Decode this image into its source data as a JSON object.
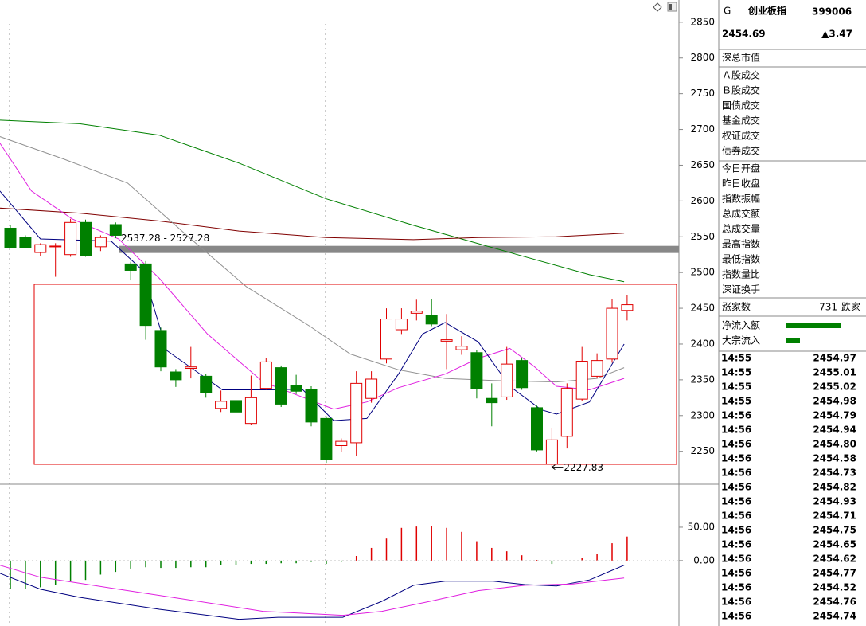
{
  "chart_data": [
    {
      "type": "candlestick",
      "open": [
        2562,
        2549,
        2528,
        2537,
        2525,
        2570,
        2536,
        2567,
        2512,
        2512,
        2419,
        2361,
        2366,
        2355,
        2310,
        2321,
        2289,
        2338,
        2367,
        2342,
        2337,
        2296,
        2258,
        2262,
        2324,
        2379,
        2420,
        2443,
        2440,
        2404,
        2392,
        2388,
        2324,
        2326,
        2377,
        2311,
        2232,
        2271,
        2323,
        2355,
        2379,
        2447
      ],
      "high": [
        2566,
        2552,
        2541,
        2541,
        2575,
        2574,
        2552,
        2570,
        2515,
        2516,
        2423,
        2365,
        2396,
        2358,
        2335,
        2325,
        2356,
        2380,
        2370,
        2357,
        2341,
        2299,
        2268,
        2362,
        2362,
        2450,
        2450,
        2462,
        2463,
        2442,
        2411,
        2392,
        2345,
        2396,
        2380,
        2314,
        2282,
        2345,
        2396,
        2387,
        2463,
        2469
      ],
      "low": [
        2535,
        2535,
        2523,
        2494,
        2522,
        2522,
        2530,
        2548,
        2489,
        2406,
        2362,
        2340,
        2352,
        2325,
        2305,
        2289,
        2287,
        2336,
        2312,
        2330,
        2285,
        2234,
        2249,
        2243,
        2318,
        2373,
        2414,
        2433,
        2425,
        2365,
        2385,
        2324,
        2285,
        2322,
        2336,
        2250,
        2227.83,
        2254,
        2320,
        2353,
        2374,
        2433
      ],
      "close": [
        2535,
        2535,
        2539,
        2537,
        2570,
        2524,
        2549,
        2552,
        2503,
        2426,
        2368,
        2350,
        2368,
        2332,
        2320,
        2305,
        2325,
        2375,
        2316,
        2334,
        2291,
        2239,
        2264,
        2345,
        2351,
        2435,
        2435,
        2446,
        2428,
        2406,
        2397,
        2338,
        2318,
        2372,
        2339,
        2252,
        2266,
        2338,
        2376,
        2377,
        2450,
        2455
      ],
      "up_color": "#e00000",
      "down_color": "#008000",
      "ylim": [
        2204,
        2881
      ],
      "yticks": [
        2250,
        2300,
        2350,
        2400,
        2450,
        2500,
        2550,
        2600,
        2650,
        2700,
        2750,
        2800,
        2850
      ],
      "lines": [
        {
          "color": "#008000",
          "x": [
            -0.7,
            4.6,
            9.9,
            15.2,
            21.0,
            26.8,
            30.0,
            33.7,
            38.5,
            40.8
          ],
          "values": [
            2713,
            2708,
            2692,
            2653,
            2603,
            2566,
            2547,
            2525,
            2497,
            2487
          ]
        },
        {
          "color": "#800000",
          "x": [
            -0.7,
            4.6,
            9.9,
            15.2,
            21.0,
            26.8,
            31.1,
            36.3,
            40.8
          ],
          "values": [
            2590,
            2583,
            2572,
            2558,
            2549,
            2546,
            2549,
            2550,
            2555
          ]
        },
        {
          "color": "#909090",
          "x": [
            -0.7,
            3.5,
            7.8,
            12.0,
            15.7,
            19.9,
            22.6,
            25.8,
            28.9,
            32.1,
            36.3,
            39.0,
            40.8
          ],
          "values": [
            2690,
            2659,
            2625,
            2547,
            2480,
            2425,
            2386,
            2364,
            2352,
            2349,
            2347,
            2352,
            2367
          ]
        },
        {
          "color": "#e020e0",
          "x": [
            -0.7,
            1.4,
            4.1,
            7.2,
            9.9,
            13.1,
            16.8,
            21.5,
            23.7,
            25.8,
            28.9,
            31.1,
            33.2,
            34.8,
            36.3,
            38.5,
            40.8
          ],
          "values": [
            2681,
            2614,
            2575,
            2547,
            2492,
            2414,
            2347,
            2309,
            2319,
            2339,
            2358,
            2380,
            2394,
            2369,
            2341,
            2336,
            2352
          ]
        },
        {
          "color": "#000080",
          "x": [
            -0.7,
            2.0,
            6.7,
            8.8,
            10.4,
            14.1,
            17.3,
            19.4,
            21.5,
            23.7,
            25.8,
            27.4,
            28.9,
            31.1,
            33.2,
            35.3,
            36.3,
            38.5,
            40.8
          ],
          "values": [
            2614,
            2547,
            2544,
            2503,
            2391,
            2336,
            2336,
            2337,
            2293,
            2296,
            2358,
            2414,
            2430,
            2403,
            2341,
            2308,
            2302,
            2319,
            2400
          ]
        }
      ],
      "band": {
        "from": 2537.28,
        "to": 2527.28,
        "label": "2537.28 - 2527.28"
      },
      "annotation": {
        "value": 2227.83
      }
    },
    {
      "type": "macd",
      "values": [
        -43,
        -43,
        -40,
        -37,
        -31,
        -29,
        -21,
        -17,
        -12,
        -10,
        -11,
        -11,
        -10,
        -10,
        -7,
        -7,
        -5,
        -5,
        -4,
        -4,
        -2,
        -5,
        -2,
        7,
        19,
        33,
        49,
        51,
        52,
        49,
        43,
        29,
        19,
        14,
        8,
        1,
        -5,
        0,
        4,
        10,
        26,
        36
      ],
      "up_color": "#e00000",
      "down_color": "#008000",
      "ylim": [
        -98,
        112
      ],
      "yticks": [
        {
          "value": 0,
          "label": "0.00"
        },
        {
          "value": 50,
          "label": "50.00"
        }
      ],
      "lines": [
        {
          "color": "#000080",
          "x": [
            -0.7,
            2.0,
            4.6,
            9.9,
            15.2,
            17.8,
            22.1,
            24.7,
            26.8,
            28.9,
            32.1,
            34.2,
            36.3,
            38.5,
            40.8
          ],
          "values": [
            -19,
            -43,
            -55,
            -73,
            -88,
            -85,
            -85,
            -61,
            -37,
            -31,
            -31,
            -36,
            -38,
            -29,
            -7
          ]
        },
        {
          "color": "#e020e0",
          "x": [
            -0.7,
            2.0,
            7.2,
            12.5,
            16.8,
            22.1,
            24.7,
            27.9,
            31.1,
            34.2,
            37.4,
            40.8
          ],
          "values": [
            -7,
            -25,
            -43,
            -61,
            -76,
            -82,
            -76,
            -61,
            -45,
            -37,
            -35,
            -26
          ]
        }
      ]
    }
  ],
  "quote_panel": {
    "code_flag": "G",
    "name": "创业板指",
    "code": "399006",
    "price": 2454.69,
    "change": "▲3.47",
    "market_rows": [
      "深总市值"
    ],
    "volume_rows": [
      "Ａ股成交",
      "Ｂ股成交",
      "国债成交",
      "基金成交",
      "权证成交",
      "债券成交"
    ],
    "index_rows": [
      "今日开盘",
      "昨日收盘",
      "指数振幅",
      "总成交额",
      "总成交量",
      "最高指数",
      "最低指数",
      "指数量比",
      "深证换手"
    ],
    "advance_label": "涨家数",
    "advance_count": 731,
    "decline_label": "跌家",
    "flow_rows": [
      "净流入额",
      "大宗流入"
    ],
    "ticks": [
      {
        "time": "14:55",
        "price": "2454.97"
      },
      {
        "time": "14:55",
        "price": "2455.01"
      },
      {
        "time": "14:55",
        "price": "2455.02"
      },
      {
        "time": "14:55",
        "price": "2454.98"
      },
      {
        "time": "14:56",
        "price": "2454.79"
      },
      {
        "time": "14:56",
        "price": "2454.94"
      },
      {
        "time": "14:56",
        "price": "2454.80"
      },
      {
        "time": "14:56",
        "price": "2454.58"
      },
      {
        "time": "14:56",
        "price": "2454.73"
      },
      {
        "time": "14:56",
        "price": "2454.82"
      },
      {
        "time": "14:56",
        "price": "2454.93"
      },
      {
        "time": "14:56",
        "price": "2454.71"
      },
      {
        "time": "14:56",
        "price": "2454.75"
      },
      {
        "time": "14:56",
        "price": "2454.65"
      },
      {
        "time": "14:56",
        "price": "2454.62"
      },
      {
        "time": "14:56",
        "price": "2454.77"
      },
      {
        "time": "14:56",
        "price": "2454.52"
      },
      {
        "time": "14:56",
        "price": "2454.76"
      },
      {
        "time": "14:56",
        "price": "2454.74"
      }
    ]
  }
}
